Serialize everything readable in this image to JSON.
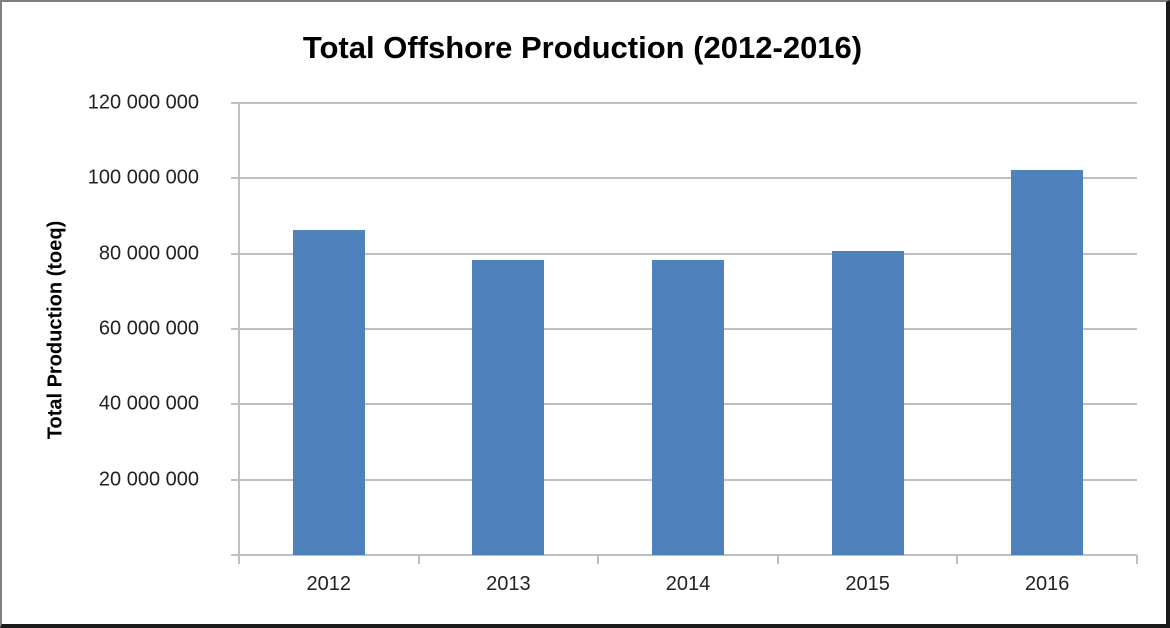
{
  "chart_data": {
    "type": "bar",
    "title": "Total Offshore Production (2012-2016)",
    "xlabel": "",
    "ylabel": "Total Production (toeq)",
    "categories": [
      "2012",
      "2013",
      "2014",
      "2015",
      "2016"
    ],
    "values": [
      86300000,
      78300000,
      78300000,
      80700000,
      102200000
    ],
    "ylim": [
      0,
      120000000
    ],
    "yticks": [
      0,
      20000000,
      40000000,
      60000000,
      80000000,
      100000000,
      120000000
    ],
    "ytick_labels": [
      "",
      "20 000 000",
      "40 000 000",
      "60 000 000",
      "80 000 000",
      "100 000 000",
      "120 000 000"
    ],
    "grid": true,
    "legend": "none",
    "bar_color": "#4f81bd"
  }
}
